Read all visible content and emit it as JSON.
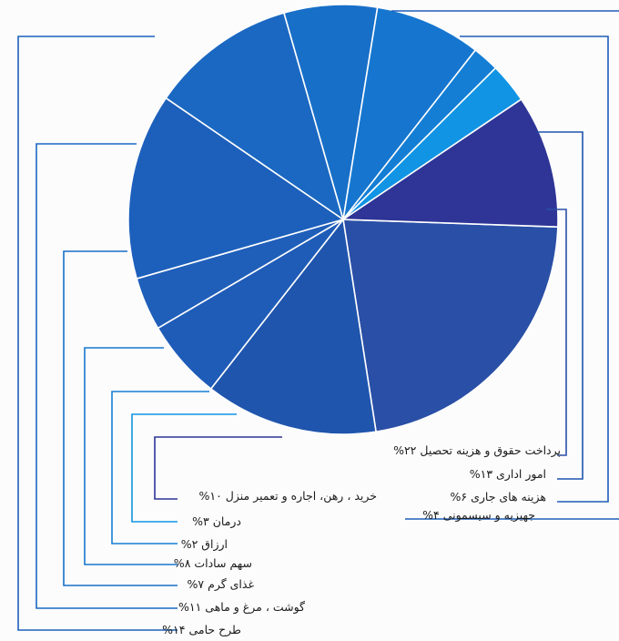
{
  "chart_data": {
    "type": "pie",
    "title": "",
    "slices": [
      {
        "label": "پرداخت حقوق و هزینه تحصیل ۲۲%",
        "value": 22,
        "color": "#2a4fa6"
      },
      {
        "label": "امور اداری ۱۳%",
        "value": 13,
        "color": "#1f55ad"
      },
      {
        "label": "هزینه های جاری ۶%",
        "value": 6,
        "color": "#1f5cb8"
      },
      {
        "label": "جهیزیه و سیسمونی ۴%",
        "value": 4,
        "color": "#1f5fba"
      },
      {
        "label": "طرح حامی ۱۴%",
        "value": 14,
        "color": "#1d60bc"
      },
      {
        "label": "گوشت ، مرغ و ماهی ۱۱%",
        "value": 11,
        "color": "#1b68c2"
      },
      {
        "label": "غذای گرم ۷%",
        "value": 7,
        "color": "#186fc8"
      },
      {
        "label": "سهم سادات ۸%",
        "value": 8,
        "color": "#1676cf"
      },
      {
        "label": "ارزاق ۲%",
        "value": 2,
        "color": "#147ed5"
      },
      {
        "label": "درمان ۳%",
        "value": 3,
        "color": "#1194e3"
      },
      {
        "label": "خرید ، رهن، اجاره و تعمیر منزل ۱۰%",
        "value": 10,
        "color": "#2e3596"
      }
    ]
  }
}
